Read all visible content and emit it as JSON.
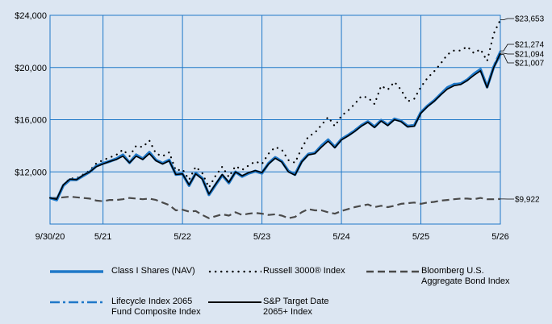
{
  "chart_data": {
    "type": "line",
    "title": "",
    "xlabel": "",
    "ylabel": "",
    "ylim": [
      8000,
      24000
    ],
    "y_ticks": [
      12000,
      16000,
      20000,
      24000
    ],
    "y_tick_labels": [
      "$12,000",
      "$16,000",
      "$20,000",
      "$24,000"
    ],
    "x_tick_labels": [
      "9/30/20",
      "5/21",
      "5/22",
      "5/23",
      "5/24",
      "5/25",
      "5/26"
    ],
    "x_tick_positions": [
      0,
      8,
      20,
      32,
      44,
      56,
      68
    ],
    "grid": true,
    "legend": "bottom",
    "colors": {
      "class_i": "#1f78c8",
      "russell": "#000000",
      "bloomberg": "#4a4a4a",
      "lifecycle": "#1f78c8",
      "sp": "#000000",
      "background": "#dce6f2",
      "gridline": "#1f78c8"
    },
    "end_labels": [
      "$23,653",
      "$21,274",
      "$21,094",
      "$21,007",
      "$9,922"
    ],
    "series": [
      {
        "key": "class_i",
        "name": "Class I Shares (NAV)",
        "values": [
          10000,
          9850,
          10950,
          11400,
          11400,
          11700,
          12000,
          12450,
          12650,
          12800,
          13000,
          13300,
          12700,
          13300,
          13000,
          13500,
          12900,
          12650,
          12900,
          11800,
          11850,
          10950,
          11900,
          11500,
          10250,
          11000,
          11750,
          11150,
          12000,
          11650,
          11900,
          12050,
          11900,
          12650,
          13100,
          12800,
          12050,
          11800,
          12800,
          13350,
          13450,
          14000,
          14450,
          13900,
          14500,
          14800,
          15150,
          15550,
          15850,
          15450,
          15950,
          15600,
          16050,
          15900,
          15500,
          15550,
          16550,
          17050,
          17450,
          17950,
          18450,
          18700,
          18750,
          19050,
          19500,
          19850,
          18500,
          20050,
          21007
        ]
      },
      {
        "key": "russell",
        "name": "Russell 3000® Index",
        "values": [
          10000,
          9900,
          11000,
          11500,
          11500,
          11800,
          12100,
          12650,
          12900,
          13100,
          13300,
          13700,
          13200,
          14000,
          13900,
          14400,
          13400,
          13200,
          13500,
          12100,
          12200,
          11400,
          12400,
          11900,
          10800,
          11700,
          12400,
          11600,
          12450,
          12150,
          12500,
          12800,
          12600,
          13400,
          13900,
          13700,
          12900,
          12700,
          13800,
          14700,
          15000,
          15600,
          16200,
          15500,
          16300,
          16700,
          17200,
          17800,
          17700,
          17200,
          18600,
          18300,
          18900,
          18300,
          17400,
          17600,
          18500,
          19200,
          19700,
          20300,
          21000,
          21300,
          21300,
          21600,
          21100,
          21400,
          20500,
          22600,
          23653
        ]
      },
      {
        "key": "bloomberg",
        "name": "Bloomberg U.S.\nAggregate Bond Index",
        "values": [
          10000,
          10000,
          10050,
          10100,
          10050,
          10000,
          9950,
          9800,
          9750,
          9850,
          9850,
          9900,
          10000,
          9950,
          9900,
          9950,
          9850,
          9650,
          9450,
          9050,
          9100,
          8950,
          9000,
          8700,
          8450,
          8600,
          8750,
          8650,
          8900,
          8700,
          8800,
          8850,
          8800,
          8700,
          8750,
          8650,
          8450,
          8550,
          8900,
          9150,
          9050,
          9050,
          8900,
          8800,
          9000,
          9150,
          9300,
          9400,
          9500,
          9300,
          9400,
          9300,
          9400,
          9550,
          9600,
          9650,
          9550,
          9650,
          9700,
          9800,
          9850,
          9900,
          9950,
          9950,
          9900,
          10000,
          9900,
          9900,
          9922
        ]
      },
      {
        "key": "lifecycle",
        "name": "Lifecycle Index 2065\nFund Composite Index",
        "values": [
          10000,
          9850,
          10950,
          11400,
          11400,
          11700,
          12050,
          12500,
          12700,
          12850,
          13050,
          13350,
          12750,
          13350,
          13050,
          13550,
          12950,
          12700,
          12950,
          11850,
          11900,
          11000,
          11950,
          11550,
          10300,
          11050,
          11800,
          11200,
          12050,
          11700,
          11950,
          12100,
          11950,
          12700,
          13150,
          12850,
          12100,
          11850,
          12850,
          13400,
          13500,
          14050,
          14500,
          13950,
          14550,
          14850,
          15200,
          15600,
          15900,
          15500,
          16000,
          15650,
          16100,
          15950,
          15550,
          15600,
          16600,
          17100,
          17500,
          18000,
          18500,
          18750,
          18800,
          19100,
          19550,
          19900,
          18550,
          20150,
          21274
        ]
      },
      {
        "key": "sp",
        "name": "S&P Target Date\n2065+ Index",
        "values": [
          10000,
          9900,
          11000,
          11450,
          11400,
          11750,
          12000,
          12400,
          12600,
          12800,
          12950,
          13200,
          12700,
          13200,
          12950,
          13400,
          12850,
          12600,
          12850,
          11800,
          11850,
          11000,
          11850,
          11450,
          10300,
          11050,
          11800,
          11200,
          12000,
          11700,
          11950,
          12100,
          11950,
          12600,
          13050,
          12750,
          12000,
          11750,
          12750,
          13300,
          13400,
          13900,
          14350,
          13850,
          14450,
          14750,
          15100,
          15500,
          15800,
          15400,
          15900,
          15550,
          16000,
          15850,
          15450,
          15500,
          16500,
          17000,
          17400,
          17900,
          18350,
          18600,
          18700,
          19000,
          19400,
          19750,
          18450,
          20000,
          21094
        ]
      }
    ]
  }
}
